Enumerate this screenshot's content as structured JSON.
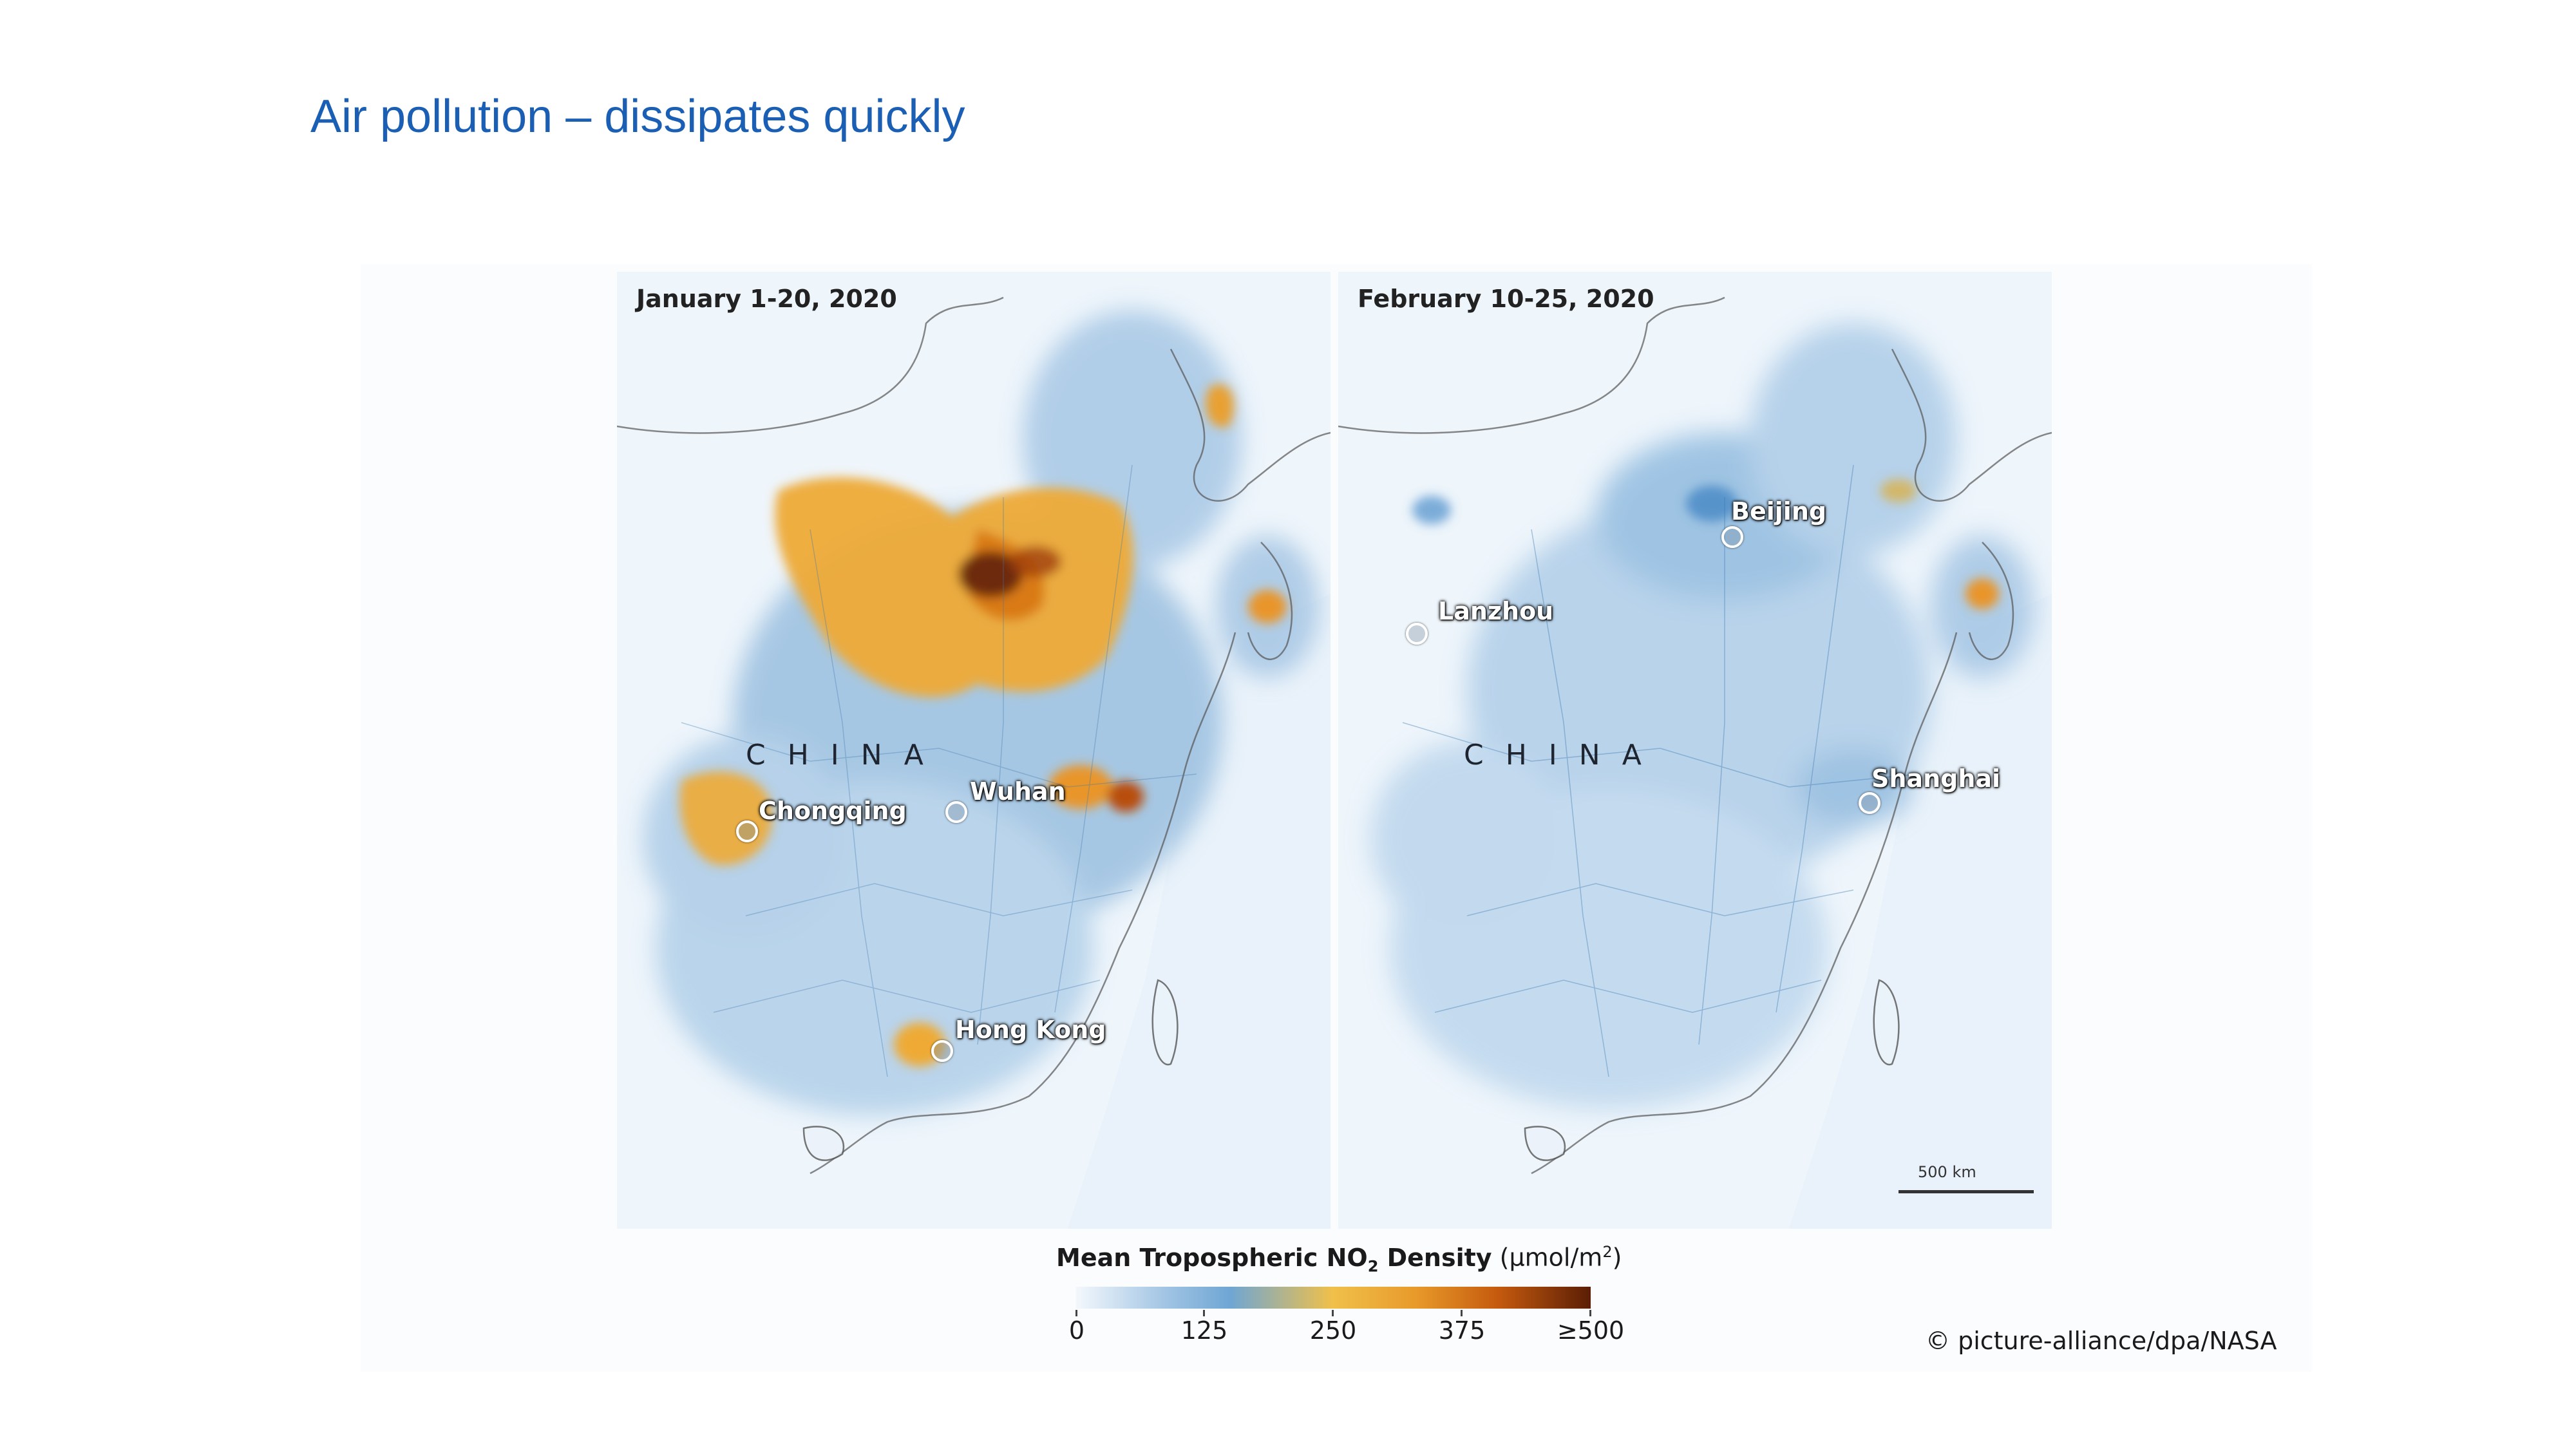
{
  "slide": {
    "title": "Air pollution – dissipates quickly"
  },
  "panels": [
    {
      "date_label": "January 1-20, 2020",
      "country_label": "CHINA",
      "cities": [
        {
          "name": "Wuhan"
        },
        {
          "name": "Chongqing"
        },
        {
          "name": "Hong Kong"
        }
      ]
    },
    {
      "date_label": "February 10-25, 2020",
      "country_label": "CHINA",
      "cities": [
        {
          "name": "Beijing"
        },
        {
          "name": "Lanzhou"
        },
        {
          "name": "Shanghai"
        }
      ]
    }
  ],
  "scale": {
    "label": "500 km"
  },
  "legend": {
    "title_bold": "Mean Tropospheric NO",
    "title_sub": "2",
    "title_bold_end": " Density",
    "units": " (µmol/m",
    "units_sup": "2",
    "units_end": ")",
    "ticks": [
      "0",
      "125",
      "250",
      "375",
      "≥500"
    ]
  },
  "credit": "© picture-alliance/dpa/NASA",
  "colors": {
    "title": "#1a5fb4",
    "low": "#9fc3e3",
    "mid": "#f0c04a",
    "high": "#5b1e05"
  }
}
